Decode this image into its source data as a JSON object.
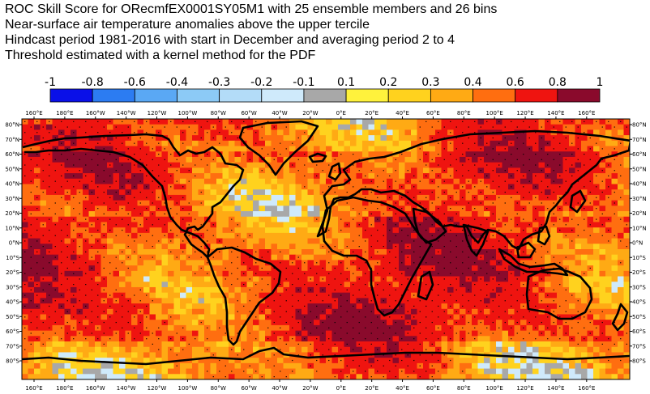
{
  "titles": {
    "line1": "ROC Skill Score for ORecmfEX0001SY05M1 with 25 ensemble members and 26 bins",
    "line2": "Near-surface air temperature anomalies above the upper tercile",
    "line3": "Hindcast period 1981-2016 with start in December and averaging period  2 to  4",
    "line4": "Threshold estimated with a kernel method for the PDF"
  },
  "legend": {
    "labels": [
      "-1",
      "-0.8",
      "-0.6",
      "-0.4",
      "-0.3",
      "-0.2",
      "-0.1",
      "0.1",
      "0.2",
      "0.3",
      "0.4",
      "0.6",
      "0.8",
      "1"
    ],
    "colors": [
      "#0a10e8",
      "#2c7cf2",
      "#5aa8f4",
      "#8ccaf6",
      "#b3dcf8",
      "#cfeafb",
      "#a8a8a8",
      "#fff23c",
      "#ffd21e",
      "#ffaa14",
      "#ff6e10",
      "#ef1410",
      "#8a0a2c"
    ]
  },
  "axes": {
    "top_lon_labels": [
      "160°E",
      "180°E",
      "160°W",
      "140°W",
      "120°W",
      "100°W",
      "80°W",
      "60°W",
      "40°W",
      "20°W",
      "0°E",
      "20°E",
      "40°E",
      "60°E",
      "80°E",
      "100°E",
      "120°E",
      "140°E",
      "160°E"
    ],
    "bottom_lon_labels": [
      "160°E",
      "180°E",
      "160°W",
      "140°W",
      "120°W",
      "100°W",
      "80°W",
      "60°W",
      "40°W",
      "20°W",
      "0°E",
      "20°E",
      "40°E",
      "60°E",
      "80°E",
      "100°E",
      "120°E",
      "140°E",
      "160°E"
    ],
    "lat_labels": [
      "80°N",
      "70°N",
      "60°N",
      "50°N",
      "40°N",
      "30°N",
      "20°N",
      "10°N",
      "0°N",
      "10°S",
      "20°S",
      "30°S",
      "40°S",
      "50°S",
      "60°S",
      "70°S",
      "80°S"
    ]
  }
}
